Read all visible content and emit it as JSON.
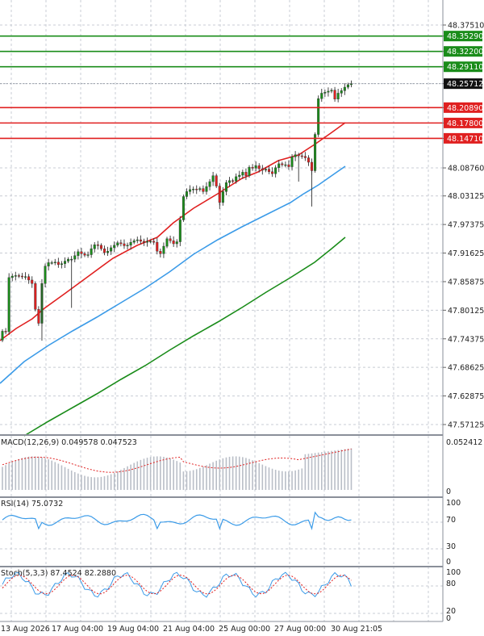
{
  "price_axis": {
    "labels": [
      "48.37510",
      "48.35290",
      "48.32200",
      "48.29110",
      "48.25712",
      "48.20890",
      "48.17800",
      "48.14710",
      "48.08760",
      "48.03125",
      "47.97375",
      "47.91625",
      "47.85875",
      "47.80125",
      "47.74375",
      "47.68625",
      "47.62875",
      "47.57125"
    ]
  },
  "levels": {
    "resistance": [
      {
        "label": "48.35290",
        "color": "#1a8c1a"
      },
      {
        "label": "48.32200",
        "color": "#1a8c1a"
      },
      {
        "label": "48.29110",
        "color": "#1a8c1a"
      }
    ],
    "support": [
      {
        "label": "48.20890",
        "color": "#e02020"
      },
      {
        "label": "48.17800",
        "color": "#e02020"
      },
      {
        "label": "48.14710",
        "color": "#e02020"
      }
    ],
    "current": {
      "label": "48.25712",
      "color": "#111111"
    }
  },
  "macd": {
    "header": "MACD(12,26,9) 0.049578 0.047523",
    "axis_labels": [
      "0.052412",
      "0"
    ]
  },
  "rsi": {
    "header": "RSI(14) 75.0732",
    "axis_labels": [
      "100",
      "70",
      "30",
      "0"
    ]
  },
  "stoch": {
    "header": "Stoch(5,3,3) 87.4524 82.2880",
    "axis_labels": [
      "100",
      "80",
      "20",
      "0"
    ]
  },
  "time_axis": {
    "labels": [
      "13 Aug 2026",
      "17 Aug 04:00",
      "19 Aug 04:00",
      "21 Aug 04:00",
      "25 Aug 00:00",
      "27 Aug 00:00",
      "30 Aug 21:05"
    ]
  },
  "colors": {
    "bull": "#1a8c1a",
    "bear": "#e02020",
    "ma_fast": "#e02020",
    "ma_mid": "#3b9be8",
    "ma_slow": "#1a8c1a",
    "grid": "#c8ccd4",
    "rsi_line": "#3b9be8",
    "stoch_signal": "#e02020",
    "macd_signal": "#e02020"
  }
}
